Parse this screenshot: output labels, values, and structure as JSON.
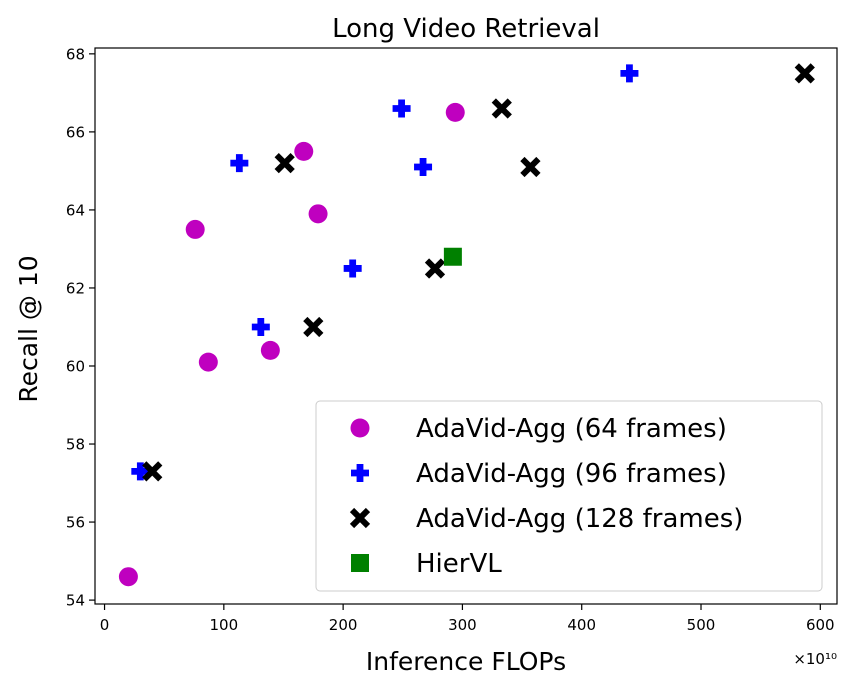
{
  "chart_data": {
    "type": "scatter",
    "title": "Long Video Retrieval",
    "xlabel": "Inference FLOPs",
    "ylabel": "Recall @ 10",
    "x_offset_label": "×10¹⁰",
    "xlim": [
      -8,
      614
    ],
    "ylim": [
      53.9,
      68.15
    ],
    "xticks": [
      0,
      100,
      200,
      300,
      400,
      500,
      600
    ],
    "yticks": [
      54,
      56,
      58,
      60,
      62,
      64,
      66,
      68
    ],
    "grid": false,
    "legend": {
      "placement": "lower-right"
    },
    "series": [
      {
        "name": "AdaVid-Agg (64 frames)",
        "marker": "circle",
        "color": "#bf00bf",
        "points": [
          {
            "x": 20,
            "y": 54.6
          },
          {
            "x": 87,
            "y": 60.1
          },
          {
            "x": 76,
            "y": 63.5
          },
          {
            "x": 139,
            "y": 60.4
          },
          {
            "x": 167,
            "y": 65.5
          },
          {
            "x": 179,
            "y": 63.9
          },
          {
            "x": 294,
            "y": 66.5
          }
        ]
      },
      {
        "name": "AdaVid-Agg (96 frames)",
        "marker": "plus",
        "color": "#0000ff",
        "points": [
          {
            "x": 30,
            "y": 57.3
          },
          {
            "x": 113,
            "y": 65.2
          },
          {
            "x": 131,
            "y": 61.0
          },
          {
            "x": 208,
            "y": 62.5
          },
          {
            "x": 249,
            "y": 66.6
          },
          {
            "x": 267,
            "y": 65.1
          },
          {
            "x": 440,
            "y": 67.5
          }
        ]
      },
      {
        "name": "AdaVid-Agg (128 frames)",
        "marker": "x",
        "color": "#000000",
        "points": [
          {
            "x": 40,
            "y": 57.3
          },
          {
            "x": 151,
            "y": 65.2
          },
          {
            "x": 175,
            "y": 61.0
          },
          {
            "x": 277,
            "y": 62.5
          },
          {
            "x": 333,
            "y": 66.6
          },
          {
            "x": 357,
            "y": 65.1
          },
          {
            "x": 587,
            "y": 67.5
          }
        ]
      },
      {
        "name": "HierVL",
        "marker": "square",
        "color": "#008000",
        "points": [
          {
            "x": 292,
            "y": 62.8
          }
        ]
      }
    ]
  }
}
